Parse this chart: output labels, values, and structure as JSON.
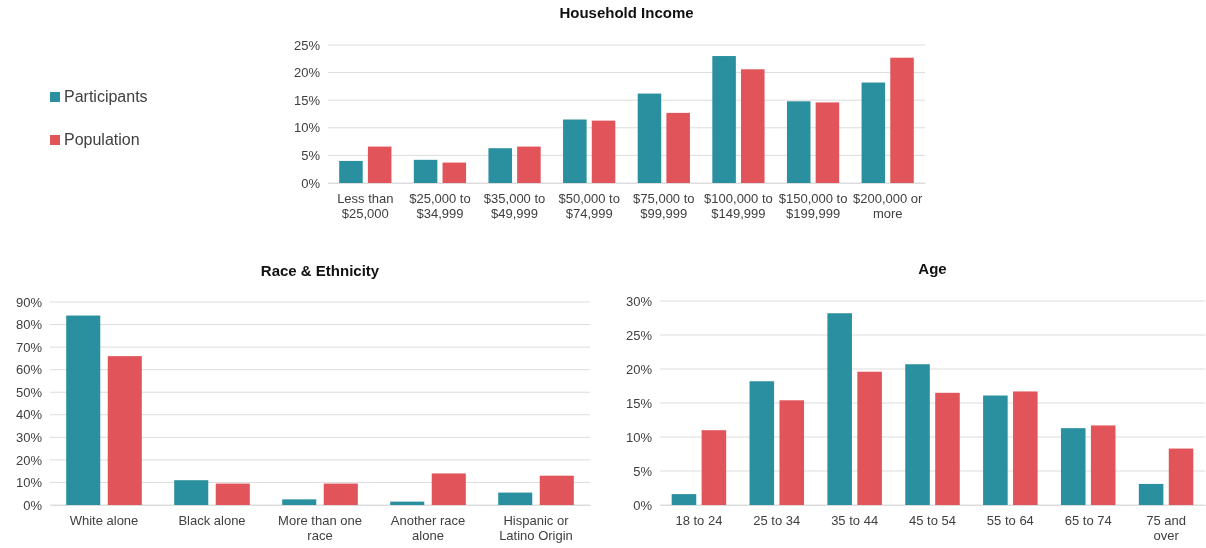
{
  "chart_data": [
    {
      "type": "bar",
      "title": "Household Income",
      "categories": [
        "Less than $25,000",
        "$25,000 to $34,999",
        "$35,000 to $49,999",
        "$50,000 to $74,999",
        "$75,000 to $99,999",
        "$100,000 to $149,999",
        "$150,000 to $199,999",
        "$200,000 or more"
      ],
      "series": [
        {
          "name": "Participants",
          "color": "#2a8f9e",
          "values": [
            4.0,
            4.2,
            6.3,
            11.5,
            16.2,
            23.0,
            14.8,
            18.2
          ]
        },
        {
          "name": "Population",
          "color": "#e0545a",
          "values": [
            6.6,
            3.7,
            6.6,
            11.3,
            12.7,
            20.6,
            14.6,
            22.7
          ]
        }
      ],
      "ylim": [
        0,
        25
      ],
      "yticks": [
        {
          "value": 0,
          "label": "0%"
        },
        {
          "value": 5,
          "label": "5%"
        },
        {
          "value": 10,
          "label": "10%"
        },
        {
          "value": 15,
          "label": "15%"
        },
        {
          "value": 20,
          "label": "20%"
        },
        {
          "value": 25,
          "label": "25%"
        }
      ],
      "grid": "y",
      "legend": "left"
    },
    {
      "type": "bar",
      "title": "Race & Ethnicity",
      "categories": [
        "White alone",
        "Black alone",
        "More than one race",
        "Another race alone",
        "Hispanic or Latino Origin"
      ],
      "series": [
        {
          "color": "#2a8f9e",
          "values": [
            84,
            11,
            2.5,
            1.5,
            5.5
          ]
        },
        {
          "color": "#e0545a",
          "values": [
            66,
            9.5,
            9.5,
            14,
            13
          ]
        }
      ],
      "ylim": [
        0,
        90
      ],
      "yticks": [
        {
          "value": 0,
          "label": "0%"
        },
        {
          "value": 10,
          "label": "10%"
        },
        {
          "value": 20,
          "label": "20%"
        },
        {
          "value": 30,
          "label": "30%"
        },
        {
          "value": 40,
          "label": "40%"
        },
        {
          "value": 50,
          "label": "50%"
        },
        {
          "value": 60,
          "label": "60%"
        },
        {
          "value": 70,
          "label": "70%"
        },
        {
          "value": 80,
          "label": "80%"
        },
        {
          "value": 90,
          "label": "90%"
        }
      ],
      "grid": "y"
    },
    {
      "type": "bar",
      "title": "Age",
      "categories": [
        "18 to 24",
        "25 to 34",
        "35 to 44",
        "45 to 54",
        "55 to 64",
        "65 to 74",
        "75 and over"
      ],
      "series": [
        {
          "color": "#2a8f9e",
          "values": [
            1.6,
            18.2,
            28.2,
            20.7,
            16.1,
            11.3,
            3.1
          ]
        },
        {
          "color": "#e0545a",
          "values": [
            11.0,
            15.4,
            19.6,
            16.5,
            16.7,
            11.7,
            8.3
          ]
        }
      ],
      "ylim": [
        0,
        30
      ],
      "yticks": [
        {
          "value": 0,
          "label": "0%"
        },
        {
          "value": 5,
          "label": "5%"
        },
        {
          "value": 10,
          "label": "10%"
        },
        {
          "value": 15,
          "label": "15%"
        },
        {
          "value": 20,
          "label": "20%"
        },
        {
          "value": 25,
          "label": "25%"
        },
        {
          "value": 30,
          "label": "30%"
        }
      ],
      "grid": "y"
    }
  ]
}
